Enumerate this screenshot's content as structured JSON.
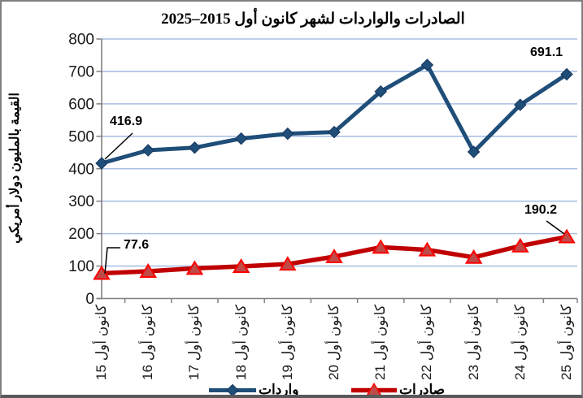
{
  "chart_data": {
    "type": "line",
    "title": "الصادرات والواردات لشهر كانون أول 2015–2025",
    "ylabel": "القيمة بالمليون دولار أمريكي",
    "xlabel": "",
    "ylim": [
      0,
      800
    ],
    "ytick_step": 100,
    "yticks": [
      "800",
      "700",
      "600",
      "500",
      "400",
      "300",
      "200",
      "100",
      "0"
    ],
    "grid": "horizontal",
    "legend_position": "bottom",
    "categories": [
      "كانون أول 15",
      "كانون أول 16",
      "كانون أول 17",
      "كانون أول 18",
      "كانون أول 19",
      "كانون أول 20",
      "كانون أول 21",
      "كانون أول 22",
      "كانون أول 23",
      "كانون أول 24",
      "كانون أول 25"
    ],
    "series": [
      {
        "name": "واردات",
        "marker": "diamond",
        "line_color": "#1F4E79",
        "marker_fill": "#1F4E79",
        "marker_stroke": "#17365D",
        "values": [
          416.9,
          457,
          465,
          493,
          508,
          513,
          638,
          720,
          452,
          597,
          691.1
        ]
      },
      {
        "name": "صادرات",
        "marker": "triangle",
        "line_color": "#C00000",
        "marker_fill": "#BE4B48",
        "marker_stroke": "#FF0000",
        "values": [
          77.6,
          84,
          93,
          99,
          106,
          129,
          158,
          150,
          127,
          162,
          190.2
        ]
      }
    ],
    "point_labels": [
      {
        "series": 0,
        "index": 0,
        "text": "416.9"
      },
      {
        "series": 0,
        "index": 10,
        "text": "691.1"
      },
      {
        "series": 1,
        "index": 0,
        "text": "77.6"
      },
      {
        "series": 1,
        "index": 10,
        "text": "190.2"
      }
    ],
    "colors": {
      "gridline": "#A9C1E4",
      "axis": "#808080",
      "tick_label": "#1a1a1a",
      "annotation": "#000000"
    }
  }
}
